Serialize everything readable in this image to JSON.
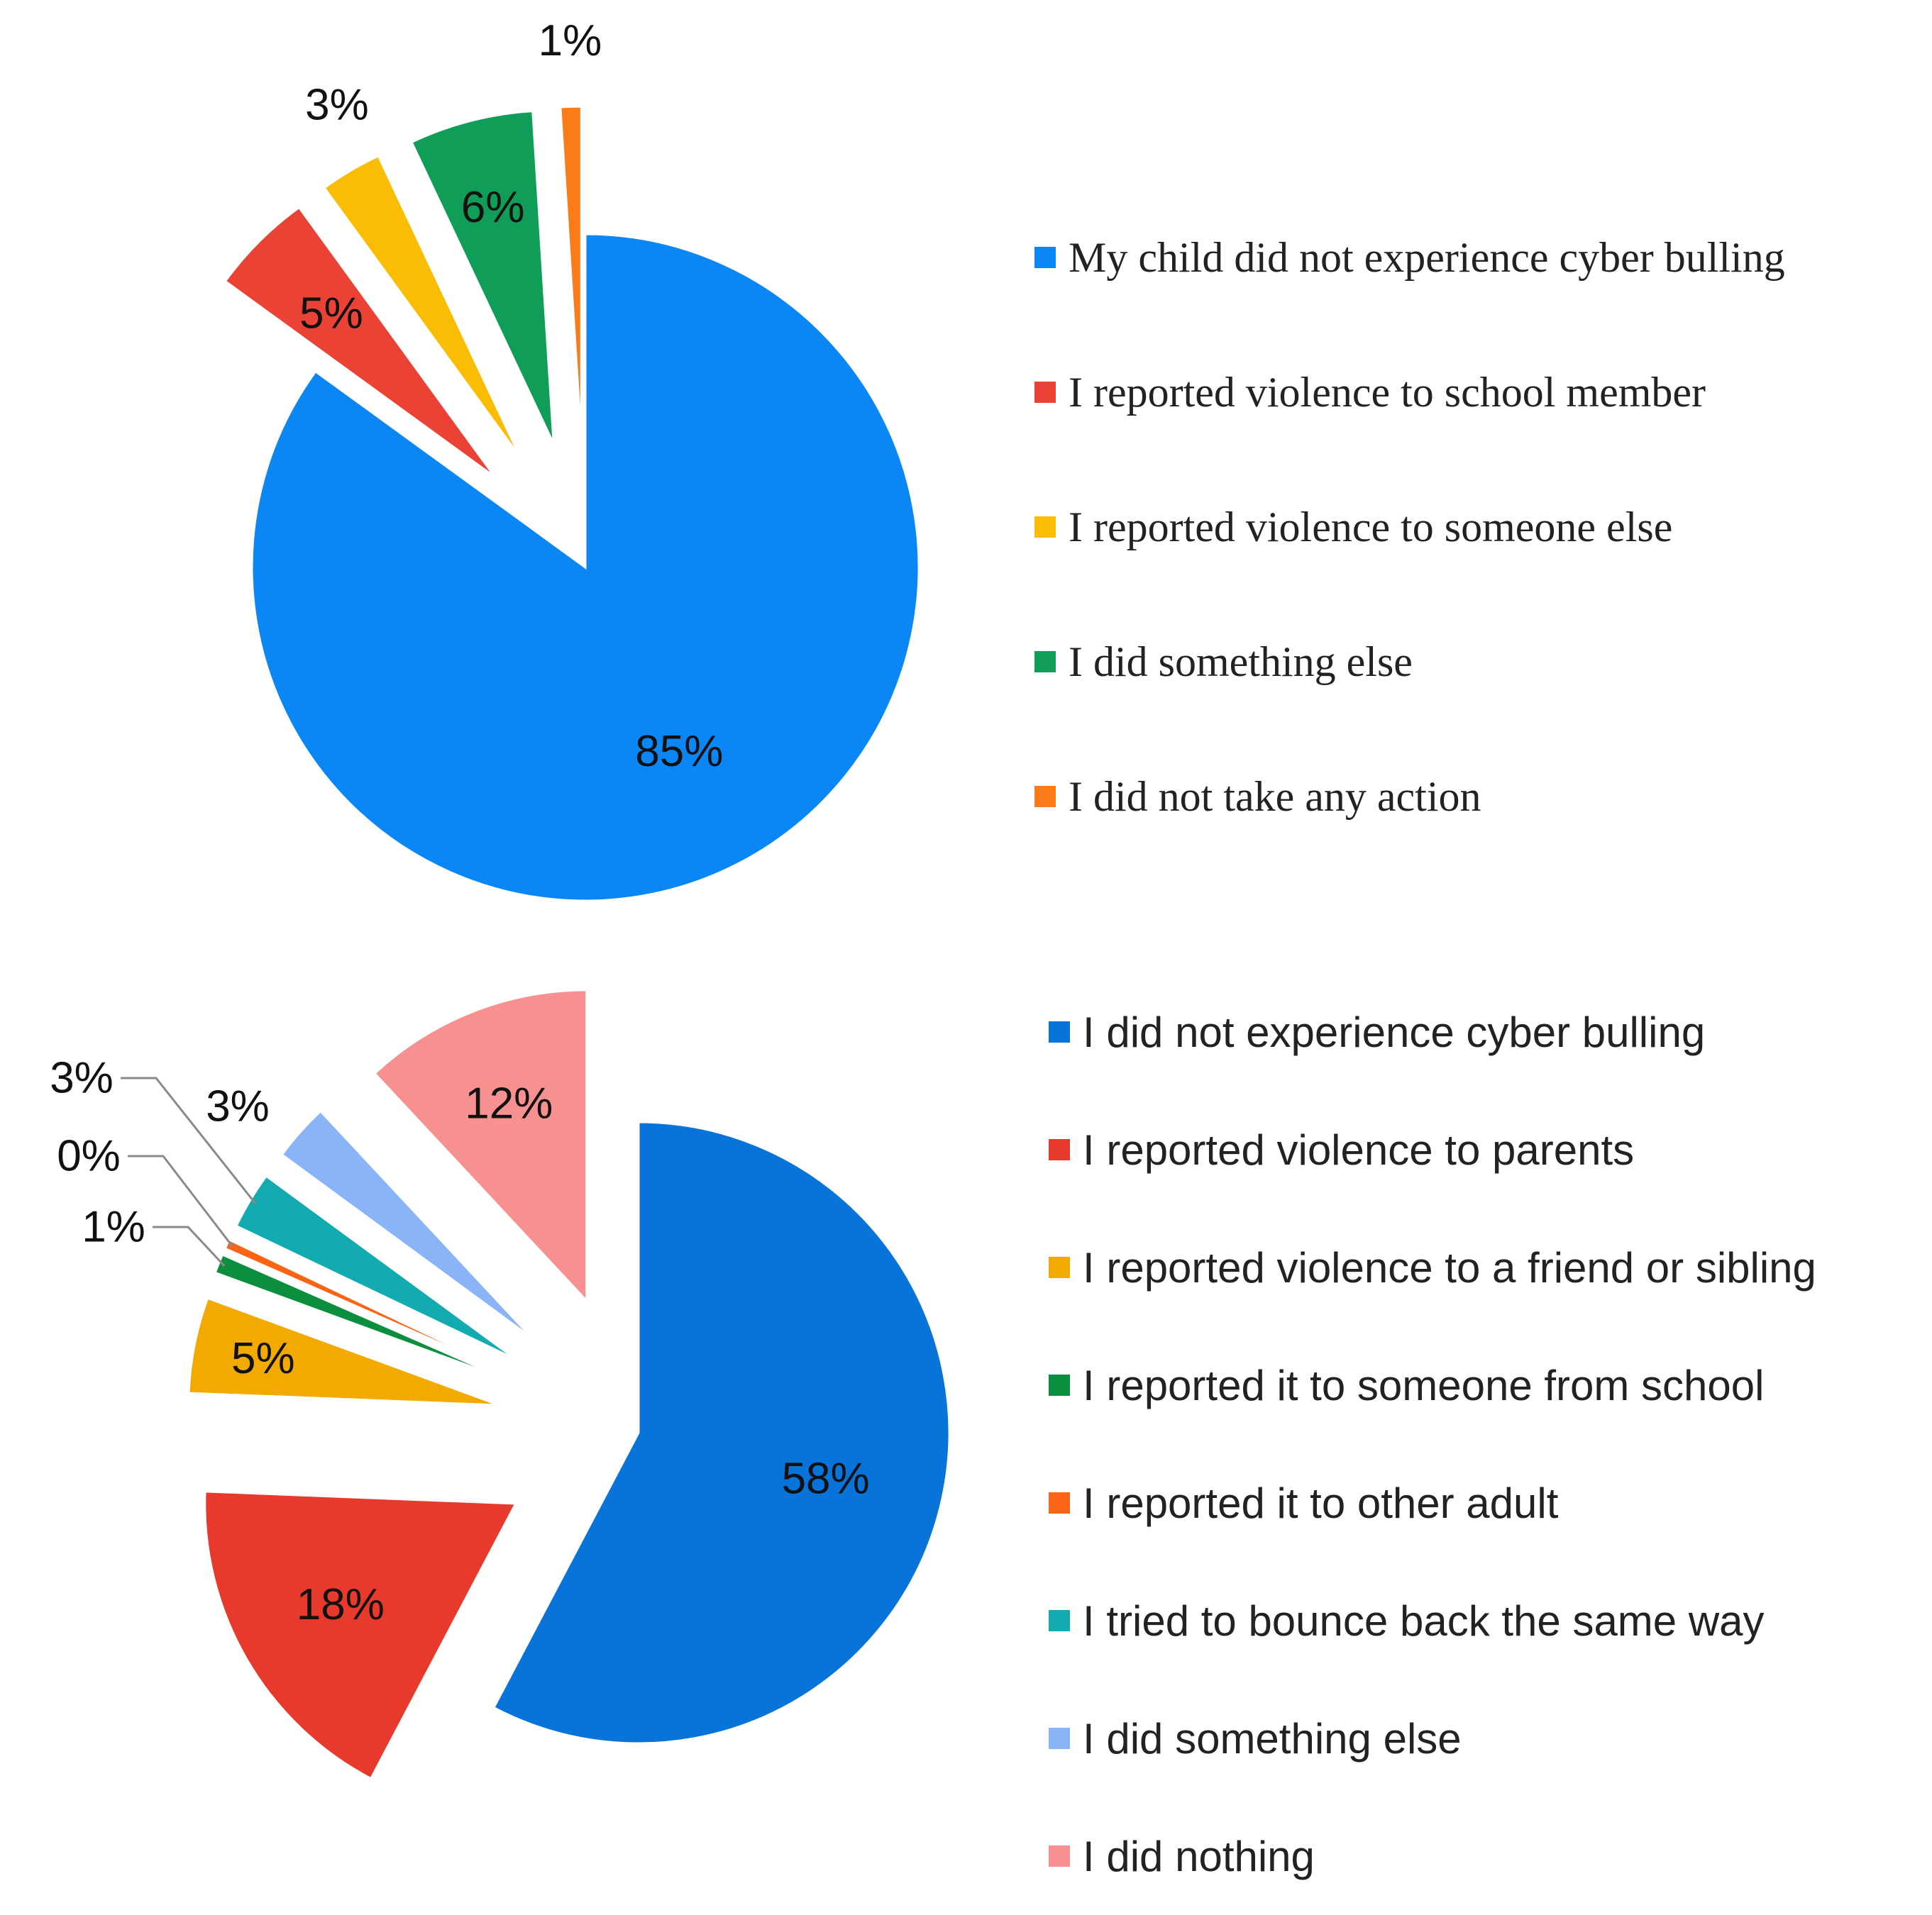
{
  "chart_data": [
    {
      "type": "pie",
      "title": "",
      "start_angle_deg": 0,
      "legend_position": "right",
      "slices": [
        {
          "label": "My child did not experience cyber bulling",
          "value": 85,
          "value_label": "85%",
          "color": "#0a87f5",
          "exploded": false
        },
        {
          "label": "I reported violence to school member",
          "value": 5,
          "value_label": "5%",
          "color": "#ea4335",
          "exploded": true
        },
        {
          "label": "I reported violence to someone else",
          "value": 3,
          "value_label": "3%",
          "color": "#fbbc04",
          "exploded": true
        },
        {
          "label": "I did something else",
          "value": 6,
          "value_label": "6%",
          "color": "#0f9d58",
          "exploded": true
        },
        {
          "label": "I did not take any action",
          "value": 1,
          "value_label": "1%",
          "color": "#fa7b17",
          "exploded": true
        }
      ]
    },
    {
      "type": "pie",
      "title": "",
      "start_angle_deg": 0,
      "legend_position": "right",
      "slices": [
        {
          "label": "I did not experience cyber bulling",
          "value": 58,
          "value_label": "58%",
          "color": "#0874da",
          "exploded": false
        },
        {
          "label": "I reported violence to parents",
          "value": 18,
          "value_label": "18%",
          "color": "#e8392d",
          "exploded": true
        },
        {
          "label": "I reported violence to a friend or sibling",
          "value": 5,
          "value_label": "5%",
          "color": "#f2a900",
          "exploded": true
        },
        {
          "label": "I reported it to someone from school",
          "value": 1,
          "value_label": "1%",
          "color": "#0b8f3e",
          "exploded": true
        },
        {
          "label": "I reported it to other adult",
          "value": 0.5,
          "value_label": "0%",
          "color": "#fa6414",
          "exploded": true
        },
        {
          "label": "I tried to bounce back the same way",
          "value": 3,
          "value_label": "3%",
          "color": "#12abb0",
          "exploded": true
        },
        {
          "label": "I did something else",
          "value": 3,
          "value_label": "3%",
          "color": "#8ab4f8",
          "exploded": true
        },
        {
          "label": "I did nothing",
          "value": 12,
          "value_label": "12%",
          "color": "#f79191",
          "exploded": true
        }
      ]
    }
  ]
}
